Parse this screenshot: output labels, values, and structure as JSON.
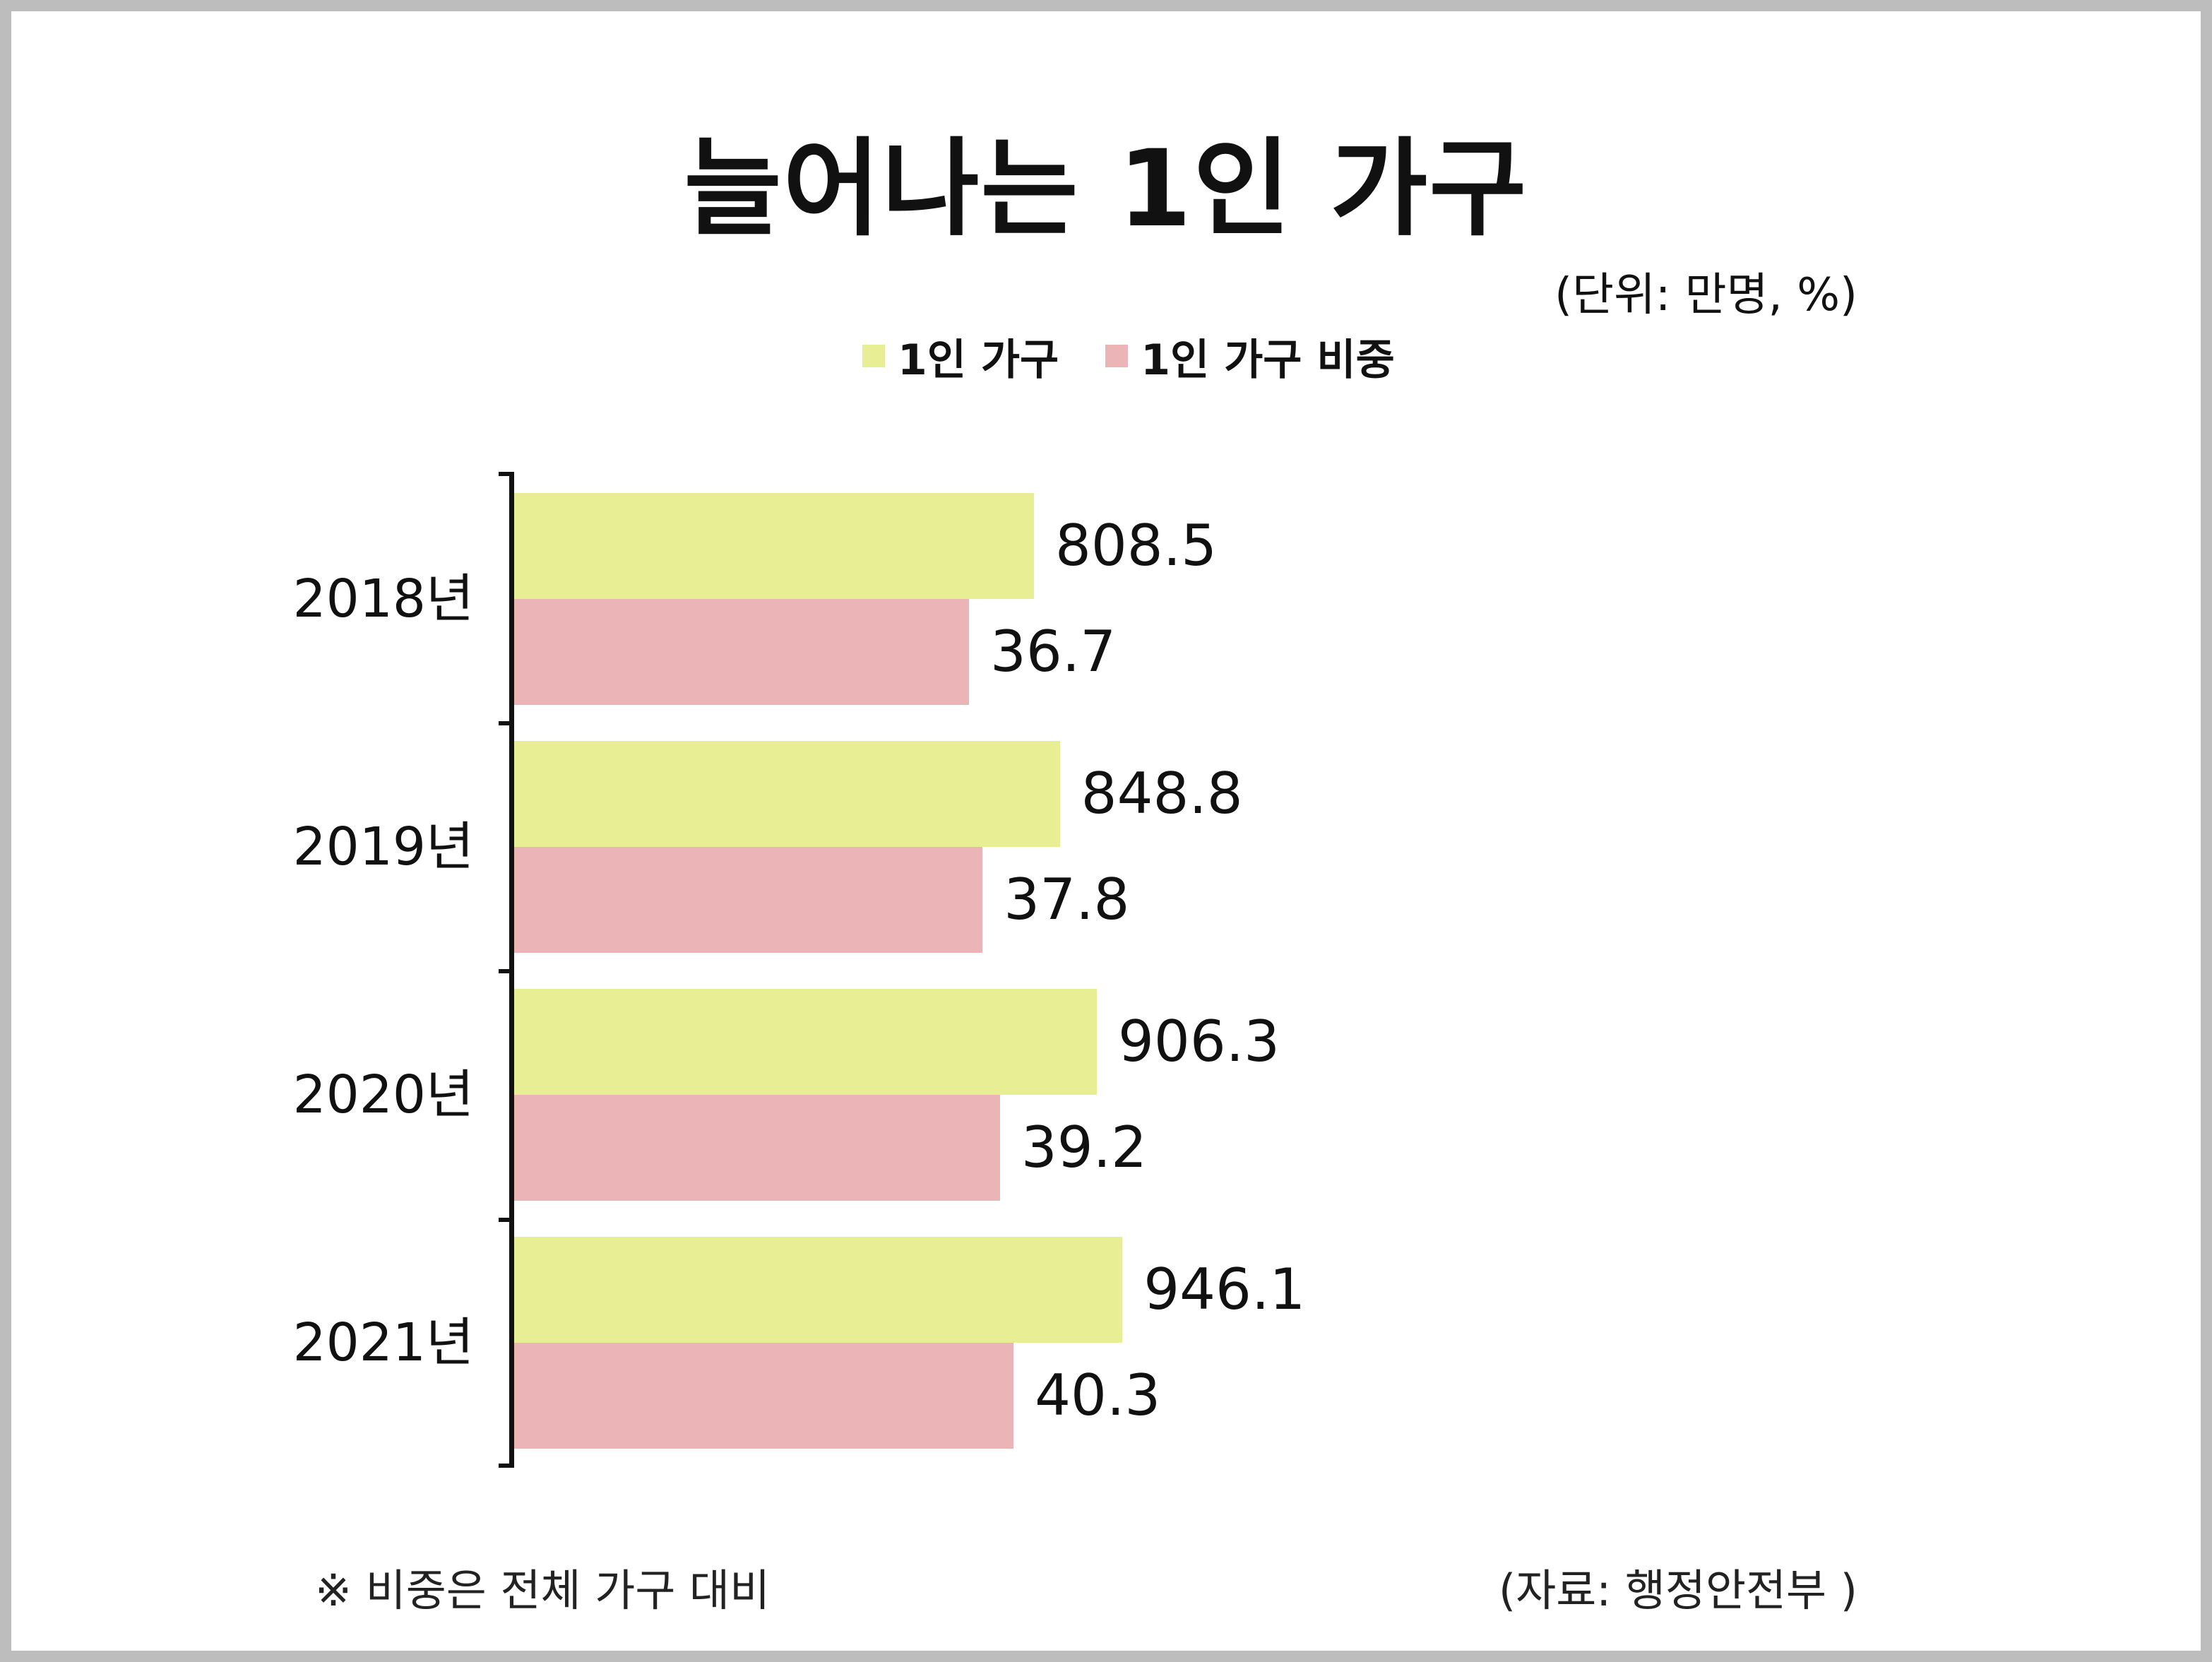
{
  "chart_data": {
    "type": "bar",
    "orientation": "horizontal",
    "title": "늘어나는 1인 가구",
    "unit_note": "(단위: 만명, %)",
    "categories": [
      "2018년",
      "2019년",
      "2020년",
      "2021년"
    ],
    "series": [
      {
        "name": "1인 가구",
        "color": "#e8ee94",
        "values": [
          808.5,
          848.8,
          906.3,
          946.1
        ]
      },
      {
        "name": "1인 가구 비중",
        "color": "#ebb4b7",
        "values": [
          36.7,
          37.8,
          39.2,
          40.3
        ]
      }
    ],
    "value_labels": [
      [
        "808.5",
        "848.8",
        "906.3",
        "946.1"
      ],
      [
        "36.7",
        "37.8",
        "39.2",
        "40.3"
      ]
    ],
    "legend_position": "top-center",
    "grid": false,
    "footnote": "※ 비중은 전체 가구 대비",
    "source": "(자료: 행정안전부 )"
  }
}
